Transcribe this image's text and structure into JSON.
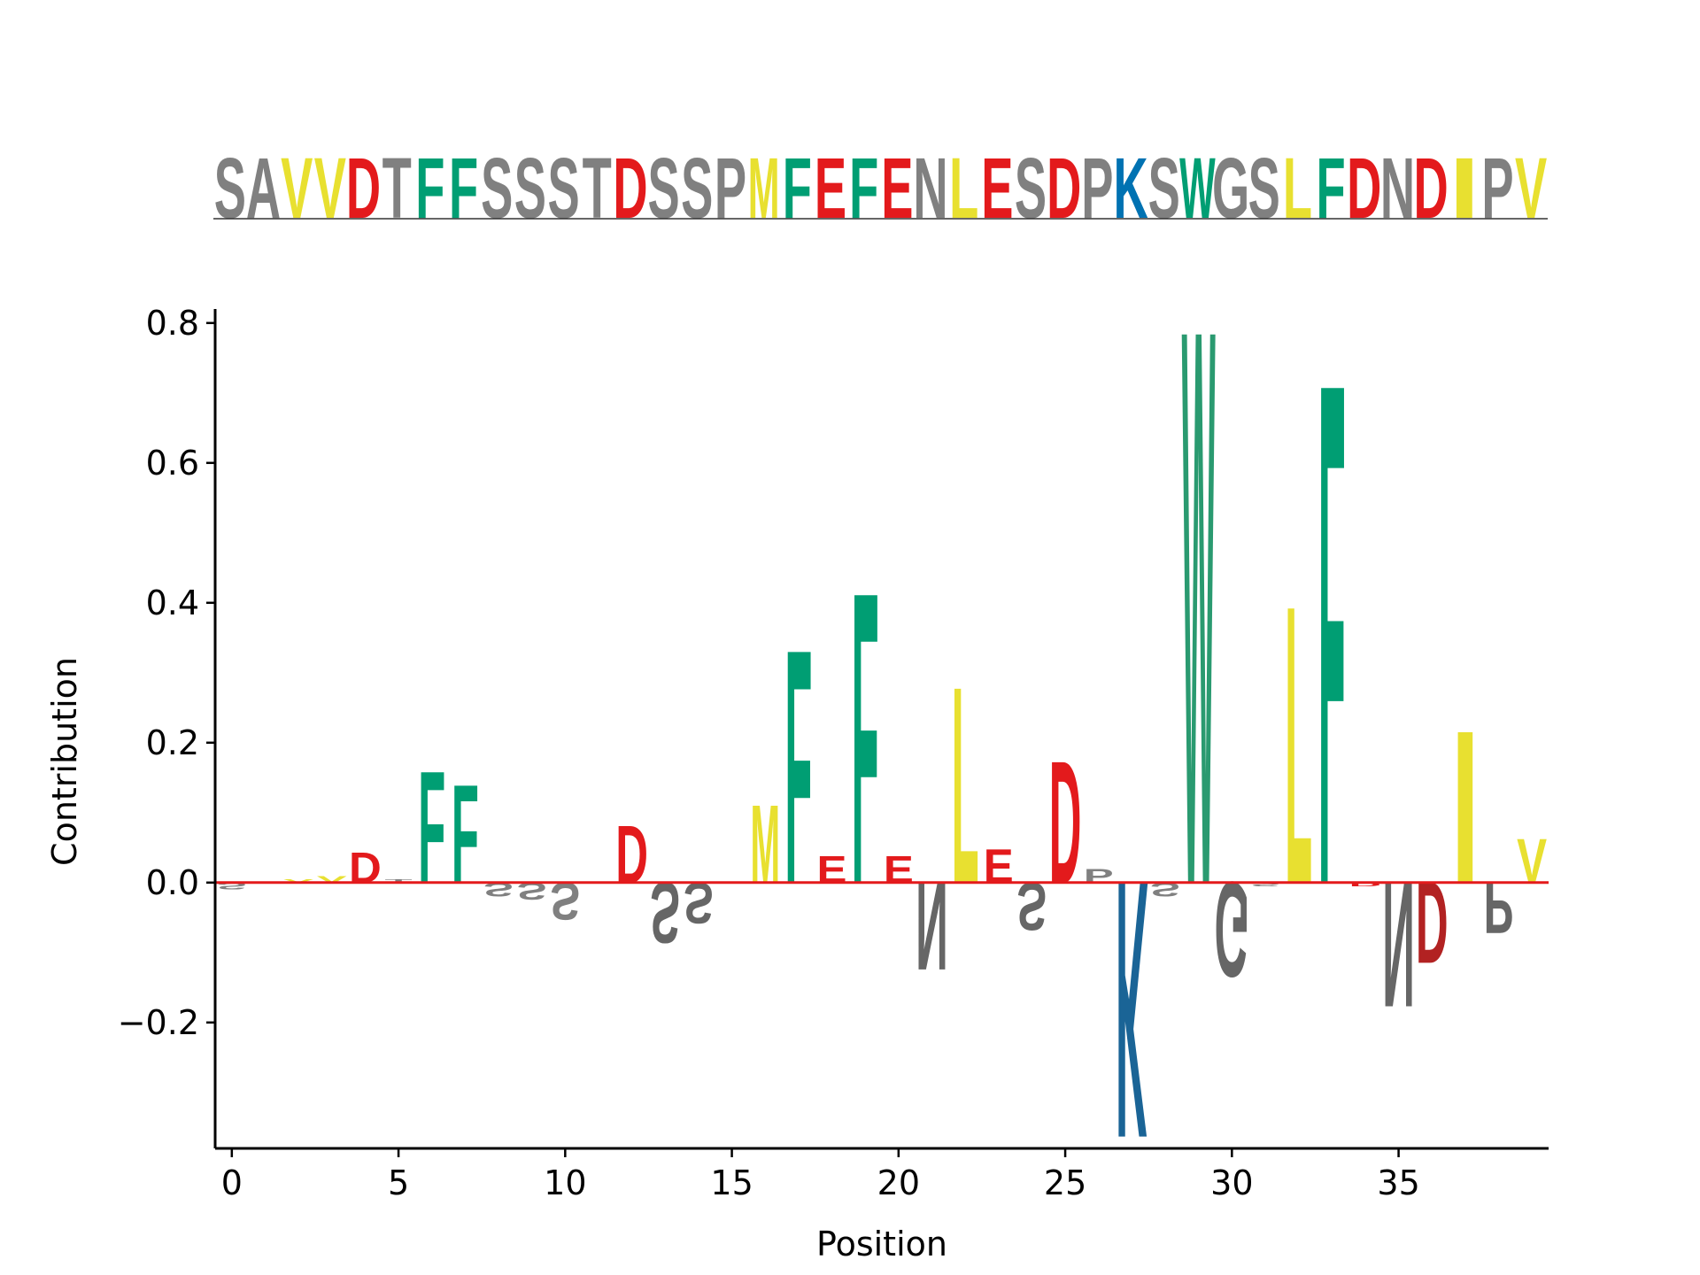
{
  "chart_data": {
    "type": "sequence-logo",
    "sequence": "SAVVDTFFSSSTDSSPMFEFENLESDPKSWGSLFDNDIPV",
    "xlabel": "Position",
    "ylabel": "Contribution",
    "xlim": [
      -0.5,
      39.5
    ],
    "ylim": [
      -0.38,
      0.82
    ],
    "xticks": [
      0,
      5,
      10,
      15,
      20,
      25,
      30,
      35
    ],
    "xtick_labels": [
      "0",
      "5",
      "10",
      "15",
      "20",
      "25",
      "30",
      "35"
    ],
    "yticks": [
      -0.2,
      0.0,
      0.2,
      0.4,
      0.6,
      0.8
    ],
    "ytick_labels": [
      "−0.2",
      "0.0",
      "0.2",
      "0.4",
      "0.6",
      "0.8"
    ],
    "grid": false,
    "baseline_color": "#e31a1c",
    "residue_colors": {
      "S": "#808080",
      "A": "#808080",
      "T": "#808080",
      "P": "#808080",
      "N": "#808080",
      "G": "#808080",
      "V": "#e8e030",
      "M": "#e8e030",
      "L": "#e8e030",
      "I": "#e8e030",
      "D": "#e31a1c",
      "E": "#e31a1c",
      "F": "#009e73",
      "W": "#009e73",
      "K": "#0072b2"
    },
    "contributions": [
      -0.01,
      0.0,
      0.005,
      0.01,
      0.045,
      0.005,
      0.165,
      0.145,
      -0.02,
      -0.025,
      -0.055,
      0.0,
      0.085,
      -0.09,
      -0.06,
      0.0,
      0.115,
      0.345,
      0.04,
      0.43,
      0.04,
      -0.13,
      0.29,
      0.05,
      -0.07,
      0.18,
      0.02,
      -0.38,
      -0.02,
      0.82,
      -0.14,
      -0.005,
      0.41,
      0.74,
      -0.005,
      -0.185,
      -0.12,
      0.225,
      -0.075,
      0.065
    ],
    "letter_colors": [
      null,
      null,
      null,
      null,
      null,
      null,
      null,
      null,
      null,
      null,
      null,
      null,
      null,
      "#666666",
      "#666666",
      null,
      null,
      null,
      null,
      null,
      null,
      "#666666",
      null,
      null,
      "#666666",
      null,
      null,
      "#1a6496",
      null,
      "#2a9a70",
      "#666666",
      null,
      null,
      null,
      null,
      "#666666",
      "#b22222",
      null,
      "#666666",
      null
    ]
  }
}
